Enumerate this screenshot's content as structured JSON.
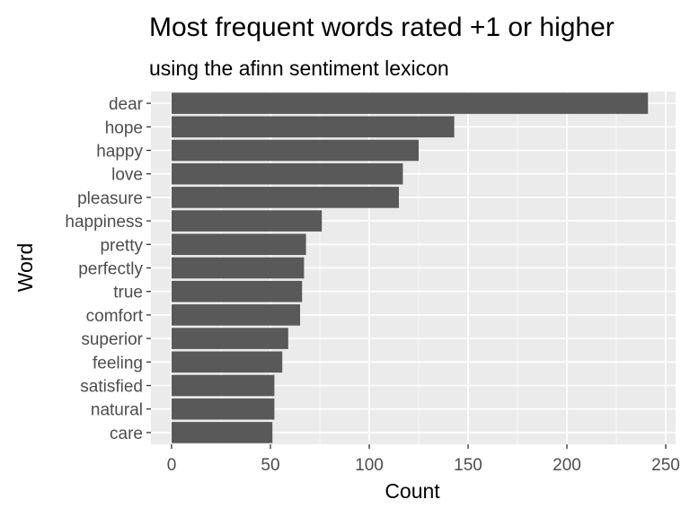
{
  "chart_data": {
    "type": "bar",
    "orientation": "horizontal",
    "title": "Most frequent words rated +1 or higher",
    "subtitle": "using the afinn sentiment lexicon",
    "xlabel": "Count",
    "ylabel": "Word",
    "categories": [
      "dear",
      "hope",
      "happy",
      "love",
      "pleasure",
      "happiness",
      "pretty",
      "perfectly",
      "true",
      "comfort",
      "superior",
      "feeling",
      "satisfied",
      "natural",
      "care"
    ],
    "values": [
      241,
      143,
      125,
      117,
      115,
      76,
      68,
      67,
      66,
      65,
      59,
      56,
      52,
      52,
      51
    ],
    "xlim": [
      0,
      250
    ],
    "xticks": [
      "0",
      "50",
      "100",
      "150",
      "200",
      "250"
    ],
    "grid": true,
    "legend": "none",
    "colors": {
      "bar": "#595959",
      "panel": "#ebebeb",
      "grid_major": "#ffffff",
      "tick_text": "#4d4d4d"
    }
  }
}
